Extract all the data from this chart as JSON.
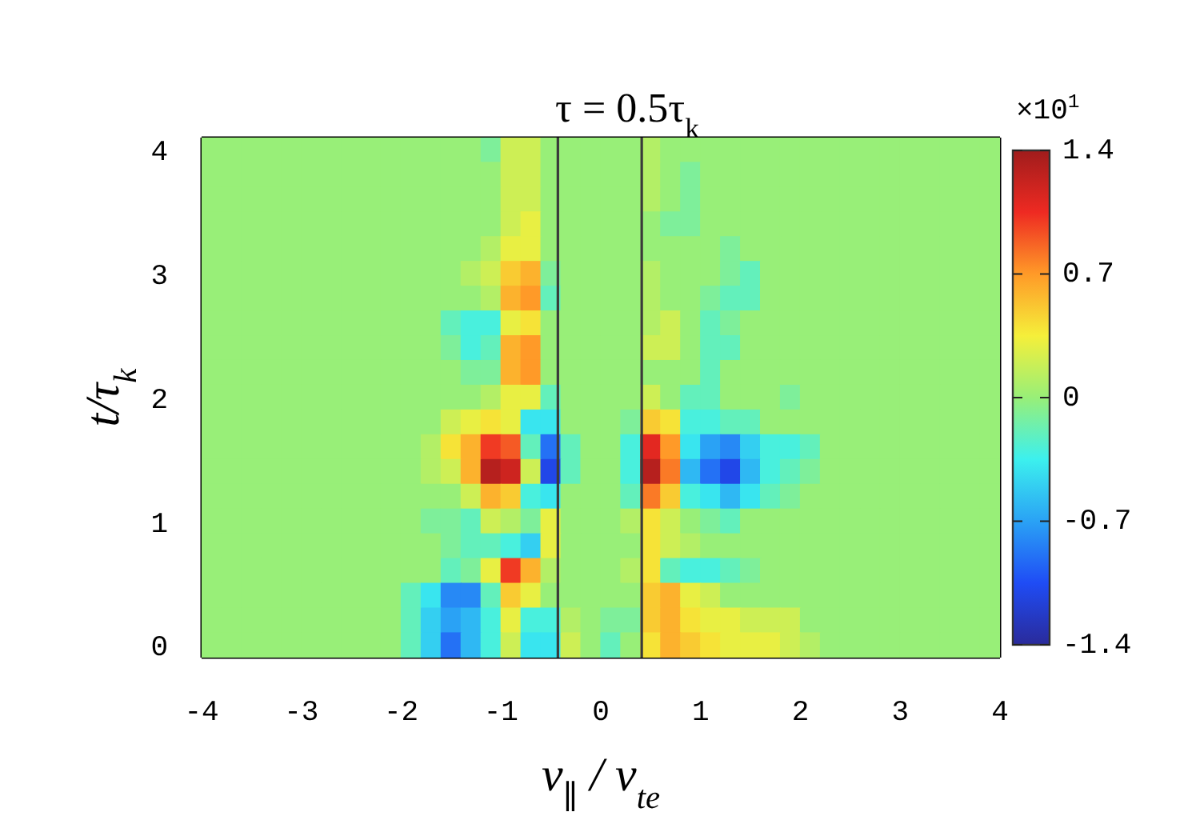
{
  "chart_data": {
    "type": "heatmap",
    "title": "τ = 0.5τ$_{k}$",
    "xlabel": "v$_{∥}$ / v$_{te}$",
    "ylabel": "t/τ$_{k}$",
    "clabel": "×10$^{1}$",
    "x": [
      -3.9,
      -3.7,
      -3.5,
      -3.3,
      -3.1,
      -2.9,
      -2.7,
      -2.5,
      -2.3,
      -2.1,
      -1.9,
      -1.7,
      -1.5,
      -1.3,
      -1.1,
      -0.9,
      -0.7,
      -0.5,
      -0.3,
      -0.1,
      0.1,
      0.3,
      0.5,
      0.7,
      0.9,
      1.1,
      1.3,
      1.5,
      1.7,
      1.9,
      2.1,
      2.3,
      2.5,
      2.7,
      2.9,
      3.1,
      3.3,
      3.5,
      3.7,
      3.9
    ],
    "y_categories": [
      "4",
      null,
      null,
      null,
      null,
      "3",
      null,
      null,
      null,
      null,
      "2",
      null,
      null,
      null,
      null,
      "1",
      null,
      null,
      null,
      null,
      "0"
    ],
    "cells": [
      [
        0,
        0,
        0,
        0,
        0,
        0,
        0,
        0,
        0,
        0,
        0,
        0,
        0,
        0,
        -0.1,
        0.2,
        0.2,
        0,
        0,
        0,
        0,
        0,
        0.1,
        0,
        0,
        0,
        0,
        0,
        0,
        0,
        0,
        0,
        0,
        0,
        0,
        0,
        0,
        0,
        0,
        0
      ],
      [
        0,
        0,
        0,
        0,
        0,
        0,
        0,
        0,
        0,
        0,
        0,
        0,
        0,
        0,
        0,
        0.2,
        0.2,
        0,
        0,
        0,
        0,
        0,
        0.1,
        0,
        -0.1,
        0,
        0,
        0,
        0,
        0,
        0,
        0,
        0,
        0,
        0,
        0,
        0,
        0,
        0,
        0
      ],
      [
        0,
        0,
        0,
        0,
        0,
        0,
        0,
        0,
        0,
        0,
        0,
        0,
        0,
        0,
        0,
        0.2,
        0.2,
        0,
        0,
        0,
        0,
        0,
        0.1,
        0,
        -0.1,
        0,
        0,
        0,
        0,
        0,
        0,
        0,
        0,
        0,
        0,
        0,
        0,
        0,
        0,
        0
      ],
      [
        0,
        0,
        0,
        0,
        0,
        0,
        0,
        0,
        0,
        0,
        0,
        0,
        0,
        0,
        0,
        0.2,
        0.3,
        0,
        0,
        0,
        0,
        0,
        0,
        -0.1,
        -0.1,
        0,
        0,
        0,
        0,
        0,
        0,
        0,
        0,
        0,
        0,
        0,
        0,
        0,
        0,
        0
      ],
      [
        0,
        0,
        0,
        0,
        0,
        0,
        0,
        0,
        0,
        0,
        0,
        0,
        0,
        0,
        0.1,
        0.3,
        0.3,
        0,
        0,
        0,
        0,
        0,
        0,
        0,
        0,
        0,
        -0.1,
        0,
        0,
        0,
        0,
        0,
        0,
        0,
        0,
        0,
        0,
        0,
        0,
        0
      ],
      [
        0,
        0,
        0,
        0,
        0,
        0,
        0,
        0,
        0,
        0,
        0,
        0,
        0,
        0.1,
        0.2,
        0.5,
        0.6,
        -0.1,
        0,
        0,
        0,
        0,
        0.1,
        0,
        0,
        0,
        -0.1,
        -0.2,
        0,
        0,
        0,
        0,
        0,
        0,
        0,
        0,
        0,
        0,
        0,
        0
      ],
      [
        0,
        0,
        0,
        0,
        0,
        0,
        0,
        0,
        0,
        0,
        0,
        0,
        0,
        0,
        0.1,
        0.6,
        0.7,
        -0.2,
        0,
        0,
        0,
        0,
        0.1,
        0,
        0,
        -0.1,
        -0.2,
        -0.2,
        0,
        0,
        0,
        0,
        0,
        0,
        0,
        0,
        0,
        0,
        0,
        0
      ],
      [
        0,
        0,
        0,
        0,
        0,
        0,
        0,
        0,
        0,
        0,
        0,
        0,
        -0.2,
        -0.3,
        -0.3,
        0.3,
        0.4,
        0,
        0,
        0,
        0,
        0,
        0.1,
        0.2,
        0,
        -0.2,
        -0.1,
        0,
        0,
        0,
        0,
        0,
        0,
        0,
        0,
        0,
        0,
        0,
        0,
        0
      ],
      [
        0,
        0,
        0,
        0,
        0,
        0,
        0,
        0,
        0,
        0,
        0,
        0,
        -0.1,
        -0.3,
        -0.2,
        0.6,
        0.7,
        0,
        0,
        0,
        0,
        0,
        0.2,
        0.2,
        0,
        -0.2,
        -0.2,
        0,
        0,
        0,
        0,
        0,
        0,
        0,
        0,
        0,
        0,
        0,
        0,
        0
      ],
      [
        0,
        0,
        0,
        0,
        0,
        0,
        0,
        0,
        0,
        0,
        0,
        0,
        0,
        -0.1,
        -0.1,
        0.6,
        0.7,
        0,
        0,
        0,
        0,
        0,
        0,
        0,
        0,
        -0.2,
        0,
        0,
        0,
        0,
        0,
        0,
        0,
        0,
        0,
        0,
        0,
        0,
        0,
        0
      ],
      [
        0,
        0,
        0,
        0,
        0,
        0,
        0,
        0,
        0,
        0,
        0,
        0,
        0,
        0,
        0.1,
        0.3,
        0.3,
        -0.2,
        0,
        0,
        0,
        0,
        0.2,
        0,
        -0.2,
        -0.2,
        0,
        0,
        0,
        -0.1,
        0,
        0,
        0,
        0,
        0,
        0,
        0,
        0,
        0,
        0
      ],
      [
        0,
        0,
        0,
        0,
        0,
        0,
        0,
        0,
        0,
        0,
        0,
        0,
        0.2,
        0.3,
        0.4,
        0.3,
        -0.4,
        -0.4,
        0,
        0,
        0,
        -0.1,
        0.5,
        0.4,
        -0.3,
        -0.3,
        -0.2,
        -0.2,
        0,
        0,
        0,
        0,
        0,
        0,
        0,
        0,
        0,
        0,
        0,
        0
      ],
      [
        0,
        0,
        0,
        0,
        0,
        0,
        0,
        0,
        0,
        0,
        0,
        0.1,
        0.4,
        0.6,
        1.0,
        0.9,
        -0.2,
        -0.9,
        -0.2,
        0,
        0,
        -0.3,
        1.1,
        0.7,
        -0.4,
        -0.7,
        -0.8,
        -0.5,
        -0.3,
        -0.3,
        -0.2,
        0,
        0,
        0,
        0,
        0,
        0,
        0,
        0,
        0
      ],
      [
        0,
        0,
        0,
        0,
        0,
        0,
        0,
        0,
        0,
        0,
        0,
        0.1,
        0.2,
        0.6,
        1.3,
        1.2,
        0.2,
        -1.1,
        -0.2,
        0,
        0,
        -0.3,
        1.3,
        0.8,
        -0.6,
        -0.9,
        -1.1,
        -0.6,
        -0.3,
        -0.2,
        -0.1,
        0,
        0,
        0,
        0,
        0,
        0,
        0,
        0,
        0
      ],
      [
        0,
        0,
        0,
        0,
        0,
        0,
        0,
        0,
        0,
        0,
        0,
        0,
        0,
        0.2,
        0.6,
        0.5,
        -0.3,
        -0.4,
        0,
        0,
        0,
        -0.2,
        0.8,
        0.5,
        -0.3,
        -0.4,
        -0.6,
        -0.4,
        -0.2,
        -0.1,
        0,
        0,
        0,
        0,
        0,
        0,
        0,
        0,
        0,
        0
      ],
      [
        0,
        0,
        0,
        0,
        0,
        0,
        0,
        0,
        0,
        0,
        0,
        -0.1,
        -0.1,
        -0.2,
        0.2,
        0.1,
        -0.1,
        0.3,
        0,
        0,
        0,
        0.1,
        0.4,
        0.2,
        0,
        -0.1,
        -0.2,
        0,
        0,
        0,
        0,
        0,
        0,
        0,
        0,
        0,
        0,
        0,
        0,
        0
      ],
      [
        0,
        0,
        0,
        0,
        0,
        0,
        0,
        0,
        0,
        0,
        0,
        0,
        -0.1,
        -0.2,
        -0.2,
        -0.3,
        -0.5,
        0.3,
        0,
        0,
        0,
        0,
        0.4,
        0.2,
        0.1,
        0,
        0,
        0,
        0,
        0,
        0,
        0,
        0,
        0,
        0,
        0,
        0,
        0,
        0,
        0
      ],
      [
        0,
        0,
        0,
        0,
        0,
        0,
        0,
        0,
        0,
        0,
        0,
        0,
        -0.2,
        -0.1,
        0.3,
        1.0,
        0.6,
        0.1,
        0,
        0,
        0,
        0.1,
        0.4,
        -0.2,
        -0.3,
        -0.3,
        -0.2,
        -0.1,
        0,
        0,
        0,
        0,
        0,
        0,
        0,
        0,
        0,
        0,
        0,
        0
      ],
      [
        0,
        0,
        0,
        0,
        0,
        0,
        0,
        0,
        0,
        0,
        -0.2,
        -0.4,
        -0.8,
        -0.8,
        -0.2,
        0.5,
        0.3,
        0,
        0,
        0,
        0,
        0,
        0.5,
        0.6,
        0.3,
        0.2,
        0,
        0,
        0,
        0,
        0,
        0,
        0,
        0,
        0,
        0,
        0,
        0,
        0,
        0
      ],
      [
        0,
        0,
        0,
        0,
        0,
        0,
        0,
        0,
        0,
        0,
        -0.2,
        -0.5,
        -0.7,
        -0.6,
        -0.3,
        0.3,
        -0.3,
        -0.3,
        0.1,
        0,
        -0.1,
        -0.1,
        0.5,
        0.6,
        0.4,
        0.3,
        0.3,
        0.2,
        0.2,
        0.2,
        0,
        0,
        0,
        0,
        0,
        0,
        0,
        0,
        0,
        0
      ],
      [
        0,
        0,
        0,
        0,
        0,
        0,
        0,
        0,
        0,
        0,
        -0.2,
        -0.5,
        -0.9,
        -0.6,
        -0.3,
        0.2,
        -0.4,
        -0.4,
        0.2,
        0,
        -0.2,
        0,
        0.4,
        0.6,
        0.5,
        0.4,
        0.3,
        0.3,
        0.3,
        0.2,
        0.1,
        0,
        0,
        0,
        0,
        0,
        0,
        0,
        0,
        0
      ]
    ],
    "xlim": [
      -4,
      4
    ],
    "xticks": [
      -4,
      -3,
      -2,
      -1,
      0,
      1,
      2,
      3,
      4
    ],
    "clim": [
      -1.4,
      1.4
    ],
    "cticks": [
      -1.4,
      -0.7,
      0,
      0.7,
      1.4
    ],
    "ref_lines": [
      {
        "axis": "x",
        "value": -0.43,
        "color": "#3a3a3a"
      },
      {
        "axis": "x",
        "value": 0.41,
        "color": "#3a3a3a"
      }
    ]
  }
}
